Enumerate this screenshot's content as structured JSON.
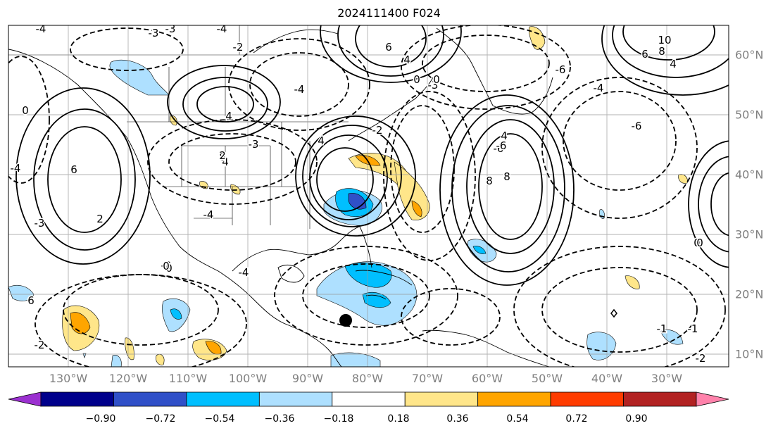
{
  "title": "2024111400 F024",
  "lon_labels": [
    "130°W",
    "120°W",
    "110°W",
    "100°W",
    "90°W",
    "80°W",
    "70°W",
    "60°W",
    "50°W",
    "40°W",
    "30°W"
  ],
  "lat_labels": [
    "60°N",
    "50°N",
    "40°N",
    "30°N",
    "20°N",
    "10°N"
  ],
  "colorbar": {
    "labels": [
      "−0.90",
      "−0.72",
      "−0.54",
      "−0.36",
      "−0.18",
      "0.18",
      "0.36",
      "0.54",
      "0.72",
      "0.90"
    ],
    "colors": [
      "#9b30d0",
      "#00008b",
      "#3050c8",
      "#00bfff",
      "#aee0ff",
      "#ffffff",
      "#ffe68a",
      "#ffa500",
      "#ff3c00",
      "#b22222",
      "#ff82ab"
    ]
  },
  "contour_labels": [
    "-4",
    "-3",
    "-3",
    "-4",
    "-2",
    "6",
    "4",
    "0",
    "-3",
    "4",
    "-4",
    "10",
    "8",
    "6",
    "4",
    "0",
    "8",
    "4",
    "-3",
    "4",
    "0",
    "-4",
    "-6",
    "6",
    "4",
    "8",
    "-3",
    "2",
    "-2",
    "6",
    "-2",
    "0",
    "-4",
    "-4",
    "0",
    "-2",
    "2",
    "0",
    "0",
    "-1",
    "-1",
    "-2",
    "-4",
    "-6",
    "-6",
    "8",
    "-6"
  ],
  "marker": "storm-center"
}
